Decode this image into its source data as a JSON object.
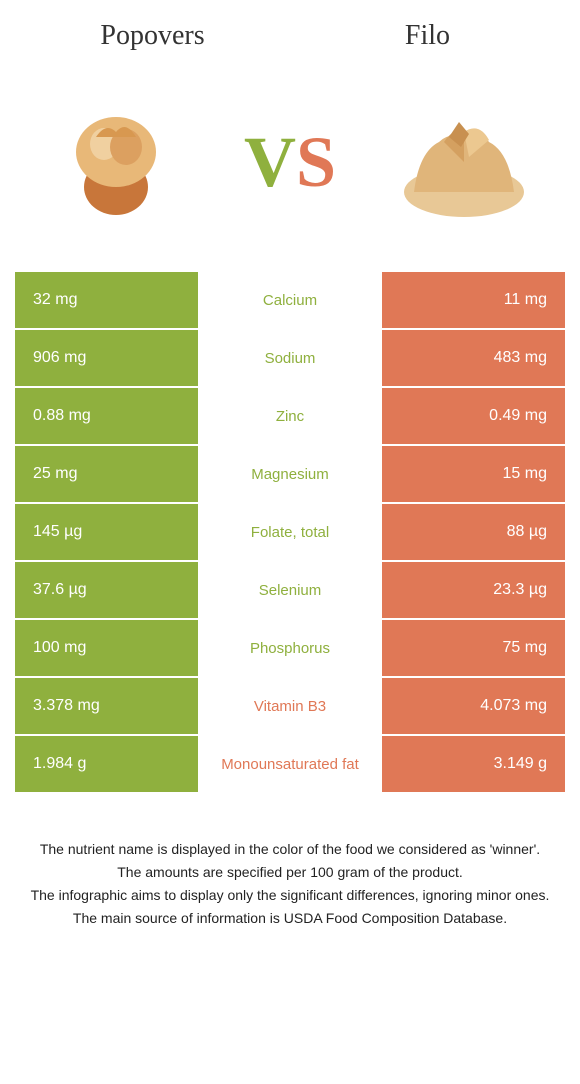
{
  "header": {
    "left_title": "Popovers",
    "right_title": "Filo",
    "vs_v": "V",
    "vs_s": "S"
  },
  "colors": {
    "left": "#8fb03e",
    "right": "#e07856",
    "bg": "#ffffff",
    "text": "#333333"
  },
  "rows": [
    {
      "left": "32 mg",
      "label": "Calcium",
      "right": "11 mg",
      "winner": "left"
    },
    {
      "left": "906 mg",
      "label": "Sodium",
      "right": "483 mg",
      "winner": "left"
    },
    {
      "left": "0.88 mg",
      "label": "Zinc",
      "right": "0.49 mg",
      "winner": "left"
    },
    {
      "left": "25 mg",
      "label": "Magnesium",
      "right": "15 mg",
      "winner": "left"
    },
    {
      "left": "145 µg",
      "label": "Folate, total",
      "right": "88 µg",
      "winner": "left"
    },
    {
      "left": "37.6 µg",
      "label": "Selenium",
      "right": "23.3 µg",
      "winner": "left"
    },
    {
      "left": "100 mg",
      "label": "Phosphorus",
      "right": "75 mg",
      "winner": "left"
    },
    {
      "left": "3.378 mg",
      "label": "Vitamin B3",
      "right": "4.073 mg",
      "winner": "right"
    },
    {
      "left": "1.984 g",
      "label": "Monounsaturated fat",
      "right": "3.149 g",
      "winner": "right"
    }
  ],
  "footer": {
    "line1": "The nutrient name is displayed in the color of the food we considered as 'winner'.",
    "line2": "The amounts are specified per 100 gram of the product.",
    "line3": "The infographic aims to display only the significant differences, ignoring minor ones.",
    "line4": "The main source of information is USDA Food Composition Database."
  }
}
